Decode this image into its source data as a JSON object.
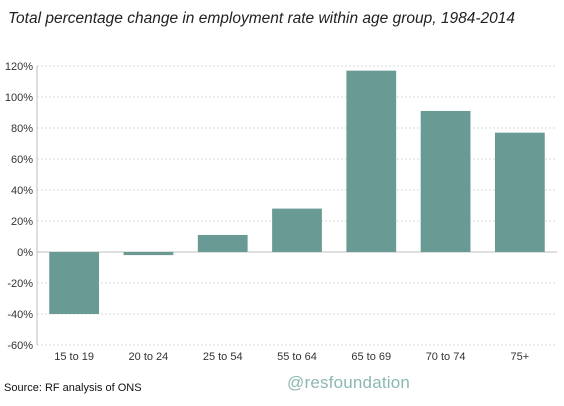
{
  "chart_data": {
    "type": "bar",
    "title": "Total percentage change in employment rate within age group, 1984-2014",
    "categories": [
      "15 to 19",
      "20 to 24",
      "25 to 54",
      "55 to 64",
      "65 to 69",
      "70 to 74",
      "75+"
    ],
    "values": [
      -40,
      -2,
      11,
      28,
      117,
      91,
      77
    ],
    "ylim": [
      -60,
      120
    ],
    "yticks": [
      -60,
      -40,
      -20,
      0,
      20,
      40,
      60,
      80,
      100,
      120
    ],
    "ytick_format": "percent",
    "grid": true,
    "colors": {
      "bar": "#6a9a94"
    }
  },
  "footer": {
    "source": "Source: RF analysis of ONS",
    "handle": "@resfoundation"
  }
}
